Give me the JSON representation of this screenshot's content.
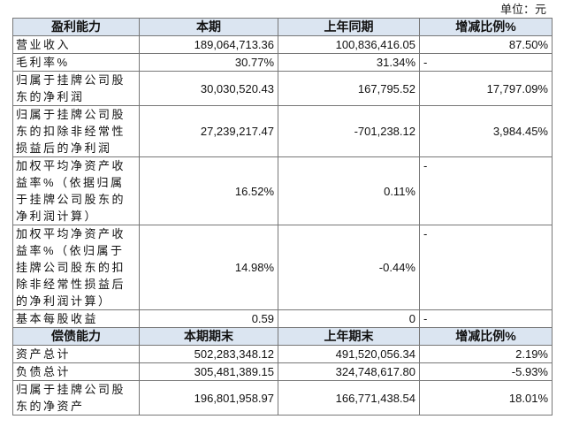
{
  "unit": "单位：元",
  "table": {
    "header": [
      "盈利能力",
      "本期",
      "上年同期",
      "增减比例%"
    ],
    "rows": [
      [
        "营业收入",
        "189,064,713.36",
        "100,836,416.05",
        "87.50%"
      ],
      [
        "毛利率%",
        "30.77%",
        "31.34%",
        "-"
      ],
      [
        "归属于挂牌公司股东的净利润",
        "30,030,520.43",
        "167,795.52",
        "17,797.09%"
      ],
      [
        "归属于挂牌公司股东的扣除非经常性损益后的净利润",
        "27,239,217.47",
        "-701,238.12",
        "3,984.45%"
      ],
      [
        "加权平均净资产收益率%（依据归属于挂牌公司股东的净利润计算）",
        "16.52%",
        "0.11%",
        "-"
      ],
      [
        "加权平均净资产收益率%（依归属于挂牌公司股东的扣除非经常性损益后的净利润计算）",
        "14.98%",
        "-0.44%",
        "-"
      ],
      [
        "基本每股收益",
        "0.59",
        "0",
        "-"
      ]
    ],
    "header2": [
      "偿债能力",
      "本期期末",
      "上年期末",
      "增减比例%"
    ],
    "rows2": [
      [
        "资产总计",
        "502,283,348.12",
        "491,520,056.34",
        "2.19%"
      ],
      [
        "负债总计",
        "305,481,389.15",
        "324,748,617.80",
        "-5.93%"
      ],
      [
        "归属于挂牌公司股东的净资产",
        "196,801,958.97",
        "166,771,438.54",
        "18.01%"
      ]
    ]
  }
}
